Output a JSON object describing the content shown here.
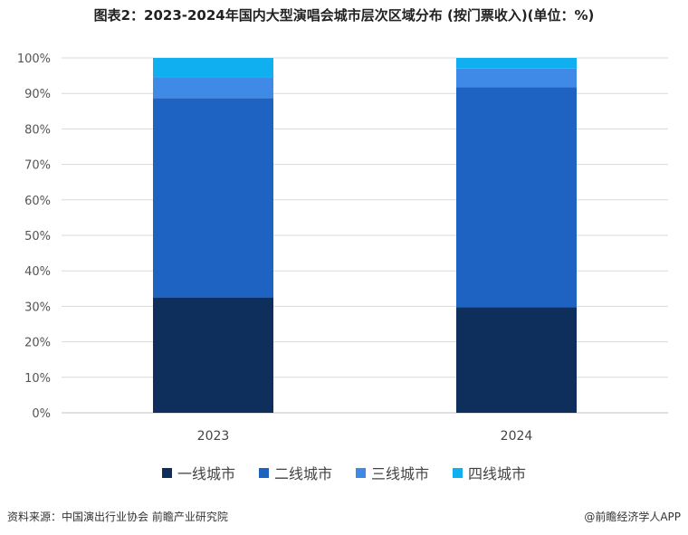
{
  "title": "图表2：2023-2024年国内大型演唱会城市层次区域分布 (按门票收入)(单位：%)",
  "footer": {
    "source": "资料来源：中国演出行业协会 前瞻产业研究院",
    "brand": "@前瞻经济学人APP"
  },
  "colors": {
    "一线城市": "#0e2e5c",
    "二线城市": "#1f63c2",
    "三线城市": "#3f8ae6",
    "四线城市": "#10b0f0",
    "grid": "#d9d9d9",
    "axis": "#bfbfbf"
  },
  "chart_data": {
    "type": "bar",
    "stacked": true,
    "categories": [
      "2023",
      "2024"
    ],
    "series": [
      {
        "name": "一线城市",
        "values": [
          32.5,
          29.8
        ]
      },
      {
        "name": "二线城市",
        "values": [
          56.2,
          61.9
        ]
      },
      {
        "name": "三线城市",
        "values": [
          5.8,
          5.3
        ]
      },
      {
        "name": "四线城市",
        "values": [
          5.5,
          3.0
        ]
      }
    ],
    "ylim": [
      0,
      100
    ],
    "yticks": [
      "0%",
      "10%",
      "20%",
      "30%",
      "40%",
      "50%",
      "60%",
      "70%",
      "80%",
      "90%",
      "100%"
    ],
    "grid": true,
    "legend_position": "bottom"
  }
}
